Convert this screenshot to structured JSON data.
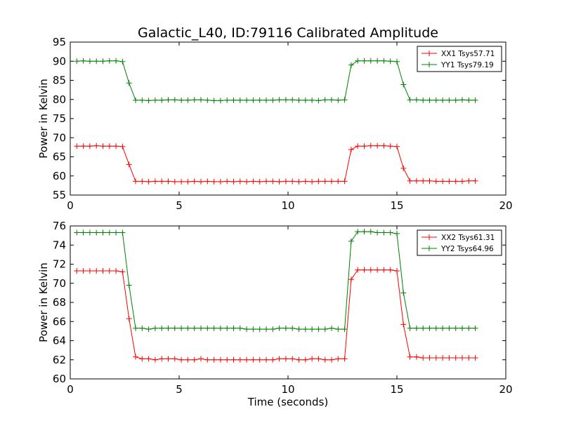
{
  "figure": {
    "title": "Galactic_L40, ID:79116 Calibrated Amplitude"
  },
  "chart_data": [
    {
      "type": "line",
      "xlabel": "",
      "ylabel": "Power in Kelvin",
      "xlim": [
        0,
        20
      ],
      "ylim": [
        55,
        95
      ],
      "xticks": [
        0,
        5,
        10,
        15,
        20
      ],
      "yticks": [
        55,
        60,
        65,
        70,
        75,
        80,
        85,
        90,
        95
      ],
      "grid": false,
      "legend_position": "top-right",
      "x": [
        0.3,
        0.6,
        0.9,
        1.2,
        1.5,
        1.8,
        2.1,
        2.4,
        2.7,
        3.0,
        3.3,
        3.6,
        3.9,
        4.2,
        4.5,
        4.8,
        5.1,
        5.4,
        5.7,
        6.0,
        6.3,
        6.6,
        6.9,
        7.2,
        7.5,
        7.8,
        8.1,
        8.4,
        8.7,
        9.0,
        9.3,
        9.6,
        9.9,
        10.2,
        10.5,
        10.8,
        11.1,
        11.4,
        11.7,
        12.0,
        12.3,
        12.6,
        12.9,
        13.2,
        13.5,
        13.8,
        14.1,
        14.4,
        14.7,
        15.0,
        15.3,
        15.6,
        15.9,
        16.2,
        16.5,
        16.8,
        17.1,
        17.4,
        17.7,
        18.0,
        18.3,
        18.6
      ],
      "series": [
        {
          "name": "XX1 Tsys57.71",
          "color": "#ff0000",
          "values": [
            67.8,
            67.8,
            67.8,
            67.9,
            67.8,
            67.8,
            67.8,
            67.7,
            63.0,
            58.6,
            58.6,
            58.5,
            58.6,
            58.6,
            58.6,
            58.5,
            58.5,
            58.5,
            58.6,
            58.5,
            58.6,
            58.5,
            58.5,
            58.6,
            58.5,
            58.6,
            58.5,
            58.6,
            58.5,
            58.6,
            58.6,
            58.5,
            58.6,
            58.6,
            58.5,
            58.6,
            58.5,
            58.6,
            58.6,
            58.6,
            58.6,
            58.6,
            66.9,
            67.8,
            67.8,
            67.9,
            67.9,
            67.9,
            67.8,
            67.7,
            62.0,
            58.7,
            58.7,
            58.7,
            58.7,
            58.6,
            58.6,
            58.6,
            58.6,
            58.6,
            58.7,
            58.7
          ]
        },
        {
          "name": "YY1 Tsys79.19",
          "color": "#008000",
          "values": [
            90.0,
            90.1,
            90.0,
            90.0,
            90.0,
            90.1,
            90.1,
            89.9,
            84.3,
            79.8,
            79.8,
            79.7,
            79.8,
            79.8,
            79.9,
            79.9,
            79.8,
            79.8,
            79.9,
            79.9,
            79.8,
            79.7,
            79.7,
            79.8,
            79.8,
            79.8,
            79.8,
            79.8,
            79.8,
            79.8,
            79.8,
            79.9,
            79.9,
            79.9,
            79.8,
            79.8,
            79.8,
            79.7,
            79.9,
            79.9,
            79.8,
            79.9,
            89.0,
            90.1,
            90.1,
            90.1,
            90.1,
            90.1,
            90.0,
            89.9,
            83.9,
            79.9,
            79.9,
            79.8,
            79.8,
            79.8,
            79.8,
            79.8,
            79.8,
            79.9,
            79.8,
            79.8
          ]
        }
      ]
    },
    {
      "type": "line",
      "xlabel": "Time (seconds)",
      "ylabel": "Power in Kelvin",
      "xlim": [
        0,
        20
      ],
      "ylim": [
        60,
        76
      ],
      "xticks": [
        0,
        5,
        10,
        15,
        20
      ],
      "yticks": [
        60,
        62,
        64,
        66,
        68,
        70,
        72,
        74,
        76
      ],
      "grid": false,
      "legend_position": "top-right",
      "x": [
        0.3,
        0.6,
        0.9,
        1.2,
        1.5,
        1.8,
        2.1,
        2.4,
        2.7,
        3.0,
        3.3,
        3.6,
        3.9,
        4.2,
        4.5,
        4.8,
        5.1,
        5.4,
        5.7,
        6.0,
        6.3,
        6.6,
        6.9,
        7.2,
        7.5,
        7.8,
        8.1,
        8.4,
        8.7,
        9.0,
        9.3,
        9.6,
        9.9,
        10.2,
        10.5,
        10.8,
        11.1,
        11.4,
        11.7,
        12.0,
        12.3,
        12.6,
        12.9,
        13.2,
        13.5,
        13.8,
        14.1,
        14.4,
        14.7,
        15.0,
        15.3,
        15.6,
        15.9,
        16.2,
        16.5,
        16.8,
        17.1,
        17.4,
        17.7,
        18.0,
        18.3,
        18.6
      ],
      "series": [
        {
          "name": "XX2 Tsys61.31",
          "color": "#ff0000",
          "values": [
            71.3,
            71.3,
            71.3,
            71.3,
            71.3,
            71.3,
            71.3,
            71.2,
            66.3,
            62.3,
            62.1,
            62.1,
            62.0,
            62.1,
            62.1,
            62.1,
            62.0,
            62.0,
            62.0,
            62.1,
            62.0,
            62.0,
            62.0,
            62.0,
            62.0,
            62.0,
            62.0,
            62.0,
            62.0,
            62.0,
            62.0,
            62.1,
            62.1,
            62.1,
            62.0,
            62.0,
            62.1,
            62.1,
            62.0,
            62.0,
            62.1,
            62.1,
            70.4,
            71.4,
            71.4,
            71.4,
            71.4,
            71.4,
            71.4,
            71.3,
            65.7,
            62.3,
            62.3,
            62.2,
            62.2,
            62.2,
            62.2,
            62.2,
            62.2,
            62.2,
            62.2,
            62.2
          ]
        },
        {
          "name": "YY2 Tsys64.96",
          "color": "#008000",
          "values": [
            75.3,
            75.3,
            75.3,
            75.3,
            75.3,
            75.3,
            75.3,
            75.3,
            69.8,
            65.3,
            65.3,
            65.2,
            65.3,
            65.3,
            65.3,
            65.3,
            65.3,
            65.3,
            65.3,
            65.3,
            65.3,
            65.3,
            65.3,
            65.3,
            65.3,
            65.3,
            65.2,
            65.2,
            65.2,
            65.2,
            65.2,
            65.3,
            65.3,
            65.3,
            65.2,
            65.2,
            65.2,
            65.2,
            65.2,
            65.3,
            65.2,
            65.2,
            74.4,
            75.4,
            75.4,
            75.4,
            75.3,
            75.3,
            75.3,
            75.2,
            69.0,
            65.3,
            65.3,
            65.3,
            65.3,
            65.3,
            65.3,
            65.3,
            65.3,
            65.3,
            65.3,
            65.3
          ]
        }
      ]
    }
  ]
}
